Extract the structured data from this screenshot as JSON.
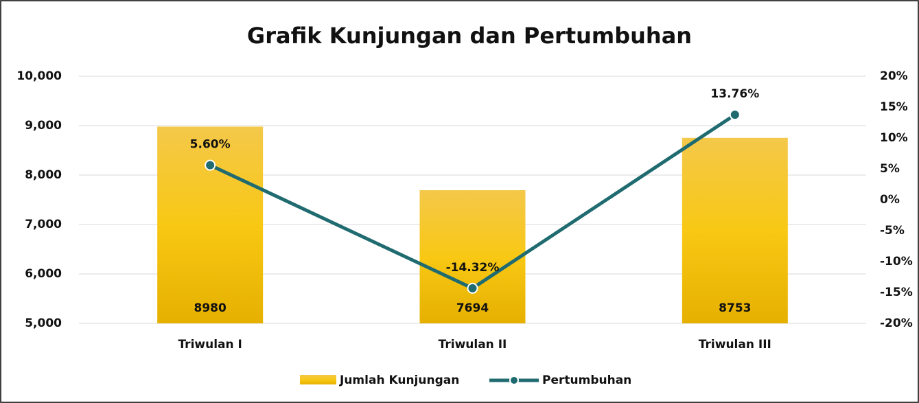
{
  "chart_data": {
    "type": "combo",
    "title": "Grafik Kunjungan dan Pertumbuhan",
    "categories": [
      "Triwulan I",
      "Triwulan II",
      "Triwulan III"
    ],
    "series": [
      {
        "name": "Jumlah Kunjungan",
        "type": "bar",
        "color": "#f2c200",
        "values": [
          8980,
          7694,
          8753
        ]
      },
      {
        "name": "Pertumbuhan",
        "type": "line",
        "axis": "y2",
        "color": "#1f6b70",
        "values": [
          5.6,
          -14.32,
          13.76
        ],
        "value_labels": [
          "5.60%",
          "-14.32%",
          "13.76%"
        ]
      }
    ],
    "ylim": [
      5000,
      10000
    ],
    "yticks": [
      {
        "value": 5000,
        "label": "5,000"
      },
      {
        "value": 6000,
        "label": "6,000"
      },
      {
        "value": 7000,
        "label": "7,000"
      },
      {
        "value": 8000,
        "label": "8,000"
      },
      {
        "value": 9000,
        "label": "9,000"
      },
      {
        "value": 10000,
        "label": "10,000"
      }
    ],
    "y2lim": [
      -20,
      20
    ],
    "y2ticks": [
      {
        "value": -20,
        "label": "-20%"
      },
      {
        "value": -15,
        "label": "-15%"
      },
      {
        "value": -10,
        "label": "-10%"
      },
      {
        "value": -5,
        "label": "-5%"
      },
      {
        "value": 0,
        "label": "0%"
      },
      {
        "value": 5,
        "label": "5%"
      },
      {
        "value": 10,
        "label": "10%"
      },
      {
        "value": 15,
        "label": "15%"
      },
      {
        "value": 20,
        "label": "20%"
      }
    ],
    "grid": true,
    "legend": "bottom"
  }
}
